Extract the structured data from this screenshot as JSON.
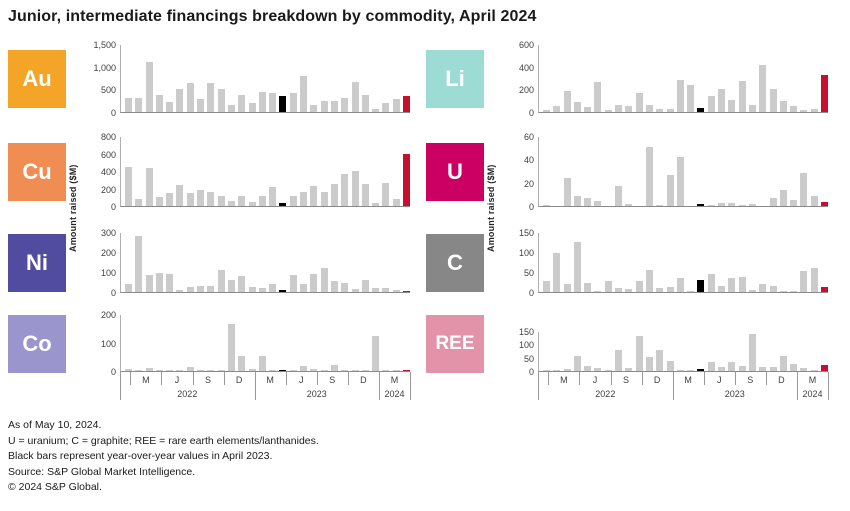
{
  "title": "Junior, intermediate financings breakdown by commodity, April 2024",
  "y_axis_label": "Amount raised ($M)",
  "footnotes": [
    "As of May 10, 2024.",
    "U = uranium; C = graphite; REE = rare earth elements/lanthanides.",
    "Black bars represent year-over-year values in April 2023.",
    "Source: S&P Global Market Intelligence.",
    "© 2024 S&P Global."
  ],
  "colors": {
    "bar_gray": "#cbcbcb",
    "bar_black": "#000000",
    "bar_red": "#c8102e",
    "axis_line": "#9b9b9b",
    "tick_text": "#404040"
  },
  "highlight": {
    "black_index": 15,
    "black_meaning": "April 2023",
    "red_index": 27,
    "red_meaning": "April 2024"
  },
  "x_axis": {
    "months_count": 28,
    "start": "Jan 2022",
    "end": "Apr 2024",
    "month_tick_labels": [
      "M",
      "J",
      "S",
      "D",
      "M",
      "J",
      "S",
      "D",
      "M"
    ],
    "year_labels": [
      "2022",
      "2023",
      "2024"
    ]
  },
  "chart_data": [
    {
      "type": "bar",
      "symbol": "Au",
      "column": "left",
      "row": 0,
      "tile_color": "#f4a426",
      "ylabel": "Amount raised ($M)",
      "ylim": [
        0,
        1500
      ],
      "yticks": [
        "1,500",
        "1,000",
        "500",
        "0"
      ],
      "values": [
        300,
        320,
        1100,
        370,
        230,
        500,
        630,
        280,
        630,
        500,
        160,
        380,
        190,
        450,
        420,
        350,
        420,
        790,
        160,
        240,
        240,
        320,
        660,
        380,
        60,
        200,
        280,
        360
      ]
    },
    {
      "type": "bar",
      "symbol": "Cu",
      "column": "left",
      "row": 1,
      "tile_color": "#ef8d53",
      "ylabel": "Amount raised ($M)",
      "ylim": [
        0,
        800
      ],
      "yticks": [
        "800",
        "600",
        "400",
        "200",
        "0"
      ],
      "values": [
        450,
        80,
        430,
        100,
        150,
        240,
        150,
        185,
        165,
        120,
        55,
        110,
        50,
        115,
        220,
        40,
        110,
        160,
        225,
        155,
        255,
        365,
        400,
        250,
        40,
        265,
        75,
        590
      ]
    },
    {
      "type": "bar",
      "symbol": "Ni",
      "column": "left",
      "row": 2,
      "tile_color": "#524ca1",
      "ylabel": "Amount raised ($M)",
      "ylim": [
        0,
        300
      ],
      "yticks": [
        "300",
        "200",
        "100",
        "0"
      ],
      "values": [
        40,
        280,
        85,
        95,
        88,
        12,
        27,
        32,
        30,
        112,
        60,
        80,
        25,
        22,
        42,
        8,
        85,
        40,
        90,
        122,
        55,
        46,
        15,
        60,
        20,
        22,
        8,
        4
      ]
    },
    {
      "type": "bar",
      "symbol": "Co",
      "column": "left",
      "row": 3,
      "tile_color": "#9b95cd",
      "ylabel": "Amount raised ($M)",
      "ylim": [
        0,
        200
      ],
      "yticks": [
        "200",
        "100",
        "0"
      ],
      "values": [
        8,
        1,
        12,
        1,
        2,
        1,
        13,
        3,
        1,
        1,
        165,
        52,
        8,
        53,
        1,
        5,
        1,
        16,
        6,
        2,
        20,
        5,
        1,
        1,
        122,
        2,
        1,
        5
      ]
    },
    {
      "type": "bar",
      "symbol": "Li",
      "column": "right",
      "row": 0,
      "tile_color": "#9cdcd4",
      "ylabel": "Amount raised ($M)",
      "ylim": [
        0,
        600
      ],
      "yticks": [
        "600",
        "400",
        "200",
        "0"
      ],
      "values": [
        20,
        55,
        190,
        85,
        45,
        265,
        20,
        65,
        50,
        165,
        65,
        30,
        25,
        285,
        235,
        35,
        140,
        205,
        105,
        270,
        60,
        415,
        200,
        95,
        50,
        15,
        30,
        325
      ]
    },
    {
      "type": "bar",
      "symbol": "U",
      "column": "right",
      "row": 1,
      "tile_color": "#cb0062",
      "ylabel": "Amount raised ($M)",
      "ylim": [
        0,
        60
      ],
      "yticks": [
        "60",
        "40",
        "20",
        "0"
      ],
      "values": [
        1,
        0,
        24,
        9,
        6.5,
        4.5,
        0,
        17.5,
        1.5,
        0,
        51,
        1,
        27,
        42,
        0,
        1.5,
        1,
        3,
        2.5,
        1,
        1.5,
        0,
        6.5,
        13.5,
        5,
        28,
        9,
        3.5
      ]
    },
    {
      "type": "bar",
      "symbol": "C",
      "column": "right",
      "row": 2,
      "tile_color": "#878787",
      "ylabel": "Amount raised ($M)",
      "ylim": [
        0,
        150
      ],
      "yticks": [
        "150",
        "100",
        "50",
        "0"
      ],
      "values": [
        28,
        97,
        19,
        125,
        23,
        2,
        28,
        10,
        8,
        27,
        56,
        9,
        12,
        36,
        2,
        31,
        45,
        14,
        36,
        37,
        5,
        21,
        14,
        3,
        2,
        52,
        61,
        13
      ]
    },
    {
      "type": "bar",
      "symbol": "REE",
      "column": "right",
      "row": 3,
      "tile_color": "#e293a9",
      "ylabel": "Amount raised ($M)",
      "ylim": [
        0,
        150
      ],
      "yticks": [
        "150",
        "100",
        "50",
        "0"
      ],
      "values": [
        3,
        2,
        8,
        55,
        20,
        13,
        1,
        80,
        12,
        130,
        51,
        80,
        37,
        5,
        1,
        6,
        33,
        14,
        33,
        19,
        140,
        17,
        16,
        57,
        26,
        10,
        1,
        22
      ]
    }
  ]
}
